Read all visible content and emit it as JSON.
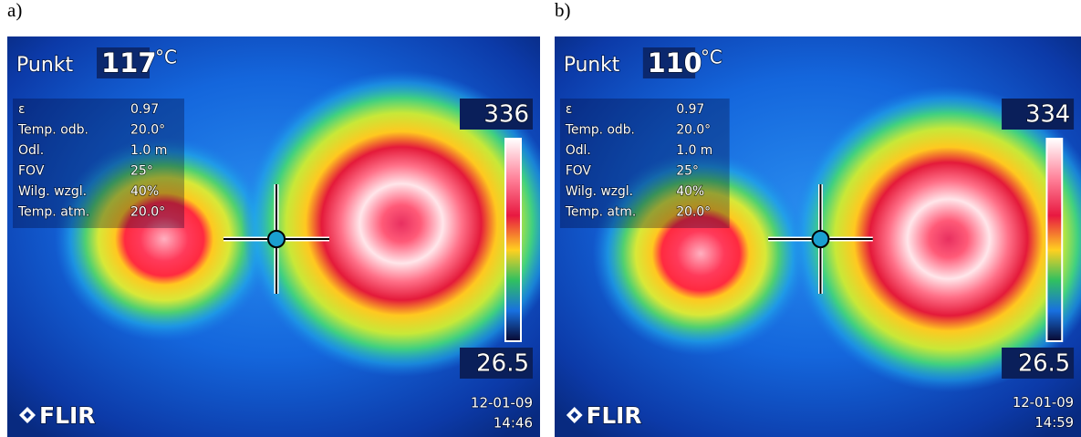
{
  "panels": [
    {
      "label": "a)",
      "spot_label": "Punkt",
      "spot_value": "117",
      "spot_unit": "°C",
      "params": [
        [
          "ε",
          "0.97"
        ],
        [
          "Temp. odb.",
          "20.0°"
        ],
        [
          "Odl.",
          "1.0 m"
        ],
        [
          "FOV",
          "25°"
        ],
        [
          "Wilg. wzgl.",
          "40%"
        ],
        [
          "Temp. atm.",
          "20.0°"
        ]
      ],
      "scale_max": "336",
      "scale_min": "26.5",
      "logo": "FLIR",
      "date": "12-01-09",
      "time": "14:46"
    },
    {
      "label": "b)",
      "spot_label": "Punkt",
      "spot_value": "110",
      "spot_unit": "°C",
      "params": [
        [
          "ε",
          "0.97"
        ],
        [
          "Temp. odb.",
          "20.0°"
        ],
        [
          "Odl.",
          "1.0 m"
        ],
        [
          "FOV",
          "25°"
        ],
        [
          "Wilg. wzgl.",
          "40%"
        ],
        [
          "Temp. atm.",
          "20.0°"
        ]
      ],
      "scale_max": "334",
      "scale_min": "26.5",
      "logo": "FLIR",
      "date": "12-01-09",
      "time": "14:59"
    }
  ]
}
